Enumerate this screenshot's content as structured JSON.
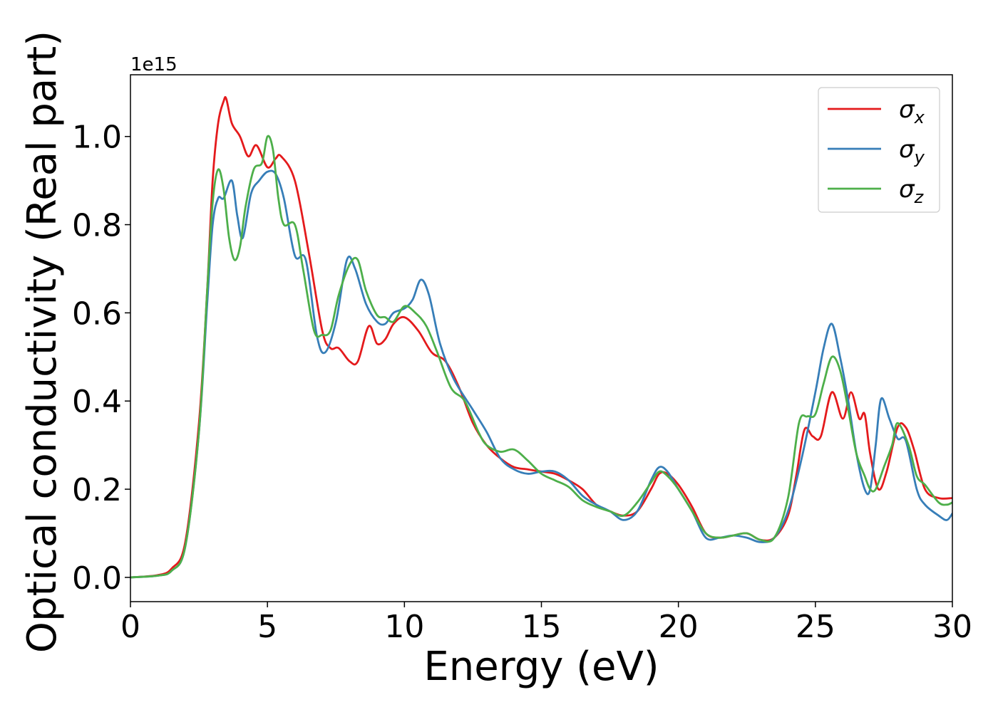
{
  "chart_data": {
    "type": "line",
    "xlabel": "Energy (eV)",
    "ylabel": "Optical conductivity (Real part)",
    "y_offset_label": "1e15",
    "xlim": [
      0,
      30
    ],
    "ylim": [
      -0.055,
      1.14
    ],
    "xticks": [
      0,
      5,
      10,
      15,
      20,
      25,
      30
    ],
    "xtick_labels": [
      "0",
      "5",
      "10",
      "15",
      "20",
      "25",
      "30"
    ],
    "yticks": [
      0.0,
      0.2,
      0.4,
      0.6,
      0.8,
      1.0
    ],
    "ytick_labels": [
      "0.0",
      "0.2",
      "0.4",
      "0.6",
      "0.8",
      "1.0"
    ],
    "grid": false,
    "legend_position": "top-right",
    "series": [
      {
        "name": "σx",
        "legend_symbol": "σ",
        "legend_sub": "x",
        "color": "#e41a1c",
        "x": [
          0,
          1,
          1.5,
          2,
          2.5,
          2.8,
          3.0,
          3.2,
          3.4,
          3.5,
          3.7,
          4.0,
          4.3,
          4.6,
          5.0,
          5.3,
          5.5,
          6.0,
          6.5,
          7.0,
          7.3,
          7.6,
          8.0,
          8.3,
          8.7,
          9.0,
          9.3,
          9.6,
          10,
          10.5,
          11,
          11.5,
          12,
          12.5,
          13,
          13.5,
          14,
          14.5,
          15,
          15.5,
          16,
          16.5,
          17,
          17.5,
          18,
          18.5,
          19,
          19.3,
          19.6,
          20,
          20.5,
          21,
          21.5,
          22,
          22.5,
          23,
          23.5,
          24,
          24.3,
          24.6,
          24.9,
          25.2,
          25.6,
          26.0,
          26.3,
          26.6,
          26.8,
          27.0,
          27.3,
          27.6,
          28.0,
          28.3,
          28.6,
          29,
          29.5,
          30
        ],
        "y": [
          0,
          0.005,
          0.02,
          0.08,
          0.35,
          0.65,
          0.9,
          1.03,
          1.08,
          1.085,
          1.03,
          1.0,
          0.955,
          0.98,
          0.93,
          0.95,
          0.955,
          0.9,
          0.74,
          0.56,
          0.52,
          0.52,
          0.49,
          0.49,
          0.57,
          0.53,
          0.54,
          0.575,
          0.59,
          0.56,
          0.51,
          0.49,
          0.43,
          0.35,
          0.3,
          0.27,
          0.25,
          0.245,
          0.24,
          0.235,
          0.22,
          0.2,
          0.165,
          0.15,
          0.14,
          0.15,
          0.2,
          0.235,
          0.235,
          0.21,
          0.16,
          0.1,
          0.09,
          0.095,
          0.1,
          0.085,
          0.09,
          0.14,
          0.23,
          0.335,
          0.32,
          0.32,
          0.42,
          0.36,
          0.42,
          0.36,
          0.37,
          0.28,
          0.2,
          0.24,
          0.34,
          0.34,
          0.29,
          0.2,
          0.18,
          0.18
        ]
      },
      {
        "name": "σy",
        "legend_symbol": "σ",
        "legend_sub": "y",
        "color": "#377eb8",
        "x": [
          0,
          1,
          1.5,
          2,
          2.5,
          2.8,
          3.0,
          3.2,
          3.4,
          3.7,
          3.9,
          4.1,
          4.4,
          4.7,
          5.0,
          5.3,
          5.6,
          6.0,
          6.4,
          6.8,
          7.1,
          7.5,
          7.9,
          8.2,
          8.6,
          9.0,
          9.3,
          9.6,
          10,
          10.3,
          10.6,
          10.9,
          11.3,
          11.8,
          12.5,
          13,
          13.5,
          14,
          14.5,
          15,
          15.5,
          16,
          16.5,
          17,
          17.5,
          18,
          18.5,
          19,
          19.3,
          19.6,
          20,
          20.5,
          21,
          21.5,
          22,
          22.5,
          23,
          23.5,
          24,
          24.5,
          25,
          25.3,
          25.6,
          25.9,
          26.2,
          26.5,
          26.8,
          27.0,
          27.2,
          27.4,
          27.7,
          28.0,
          28.3,
          28.7,
          29,
          29.5,
          29.8,
          30
        ],
        "y": [
          0,
          0.004,
          0.015,
          0.07,
          0.33,
          0.62,
          0.8,
          0.86,
          0.86,
          0.9,
          0.82,
          0.77,
          0.87,
          0.9,
          0.92,
          0.915,
          0.86,
          0.73,
          0.72,
          0.55,
          0.51,
          0.58,
          0.72,
          0.7,
          0.62,
          0.58,
          0.575,
          0.6,
          0.61,
          0.63,
          0.675,
          0.64,
          0.53,
          0.45,
          0.38,
          0.33,
          0.27,
          0.245,
          0.235,
          0.24,
          0.24,
          0.22,
          0.185,
          0.165,
          0.15,
          0.13,
          0.15,
          0.22,
          0.25,
          0.24,
          0.2,
          0.15,
          0.09,
          0.09,
          0.095,
          0.09,
          0.08,
          0.09,
          0.15,
          0.27,
          0.42,
          0.52,
          0.575,
          0.5,
          0.4,
          0.28,
          0.2,
          0.2,
          0.3,
          0.405,
          0.36,
          0.315,
          0.31,
          0.2,
          0.165,
          0.14,
          0.13,
          0.145
        ]
      },
      {
        "name": "σz",
        "legend_symbol": "σ",
        "legend_sub": "z",
        "color": "#4daf4a",
        "x": [
          0,
          1,
          1.5,
          2,
          2.5,
          2.8,
          3.0,
          3.2,
          3.4,
          3.6,
          3.8,
          4.0,
          4.2,
          4.5,
          4.8,
          5.0,
          5.2,
          5.4,
          5.6,
          6.0,
          6.3,
          6.7,
          7.0,
          7.3,
          7.6,
          8.0,
          8.3,
          8.6,
          9.0,
          9.3,
          9.6,
          10,
          10.4,
          10.8,
          11.2,
          11.7,
          12.2,
          12.7,
          13,
          13.5,
          14,
          14.5,
          15,
          15.5,
          16,
          16.5,
          17,
          17.5,
          18,
          18.5,
          19,
          19.3,
          19.6,
          20,
          20.5,
          21,
          21.5,
          22,
          22.5,
          23,
          23.5,
          24,
          24.4,
          24.7,
          25.0,
          25.3,
          25.6,
          25.9,
          26.2,
          26.5,
          26.8,
          27.0,
          27.2,
          27.5,
          27.8,
          28.0,
          28.4,
          28.7,
          29,
          29.5,
          29.8,
          30
        ],
        "y": [
          0,
          0.004,
          0.015,
          0.07,
          0.33,
          0.65,
          0.85,
          0.925,
          0.88,
          0.77,
          0.72,
          0.75,
          0.84,
          0.925,
          0.94,
          1.0,
          0.97,
          0.86,
          0.8,
          0.8,
          0.7,
          0.56,
          0.55,
          0.56,
          0.64,
          0.71,
          0.72,
          0.65,
          0.595,
          0.59,
          0.58,
          0.615,
          0.6,
          0.57,
          0.51,
          0.43,
          0.4,
          0.33,
          0.3,
          0.285,
          0.29,
          0.265,
          0.235,
          0.22,
          0.205,
          0.175,
          0.16,
          0.15,
          0.14,
          0.17,
          0.215,
          0.24,
          0.23,
          0.2,
          0.15,
          0.1,
          0.09,
          0.095,
          0.1,
          0.085,
          0.09,
          0.18,
          0.35,
          0.365,
          0.37,
          0.44,
          0.5,
          0.47,
          0.38,
          0.28,
          0.23,
          0.2,
          0.2,
          0.25,
          0.3,
          0.35,
          0.3,
          0.23,
          0.21,
          0.17,
          0.165,
          0.17
        ]
      }
    ]
  }
}
